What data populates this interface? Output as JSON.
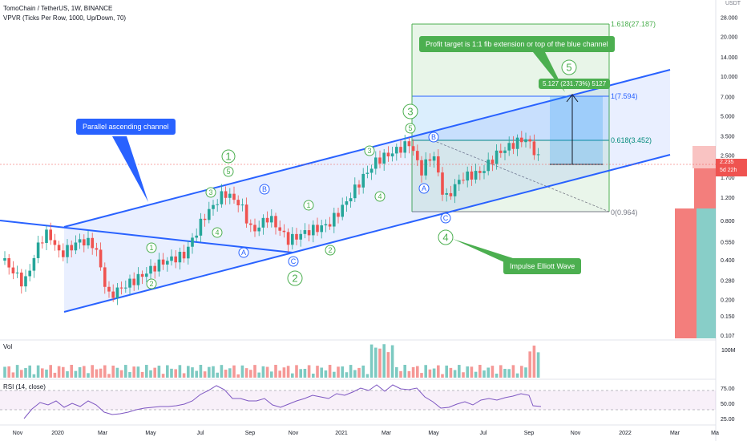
{
  "header": {
    "title": "TomoChain / TetherUS, 1W, BINANCE",
    "indicator": "VPVR (Ticks Per Row, 1000, Up/Down, 70)"
  },
  "chart_data": {
    "type": "candlestick",
    "price_axis": {
      "unit": "USDT",
      "scale": "log",
      "range": [
        0.107,
        33.0
      ],
      "ticks": [
        "28.000",
        "20.000",
        "14.000",
        "10.000",
        "7.000",
        "5.000",
        "3.500",
        "2.500",
        "1.700",
        "1.200",
        "0.800",
        "0.550",
        "0.400",
        "0.280",
        "0.200",
        "0.150",
        "0.107"
      ],
      "current_price": "2.235",
      "countdown": "5d 22h"
    },
    "time_axis": {
      "labels": [
        "Nov",
        "2020",
        "Mar",
        "May",
        "Jul",
        "Sep",
        "Nov",
        "2021",
        "Mar",
        "May",
        "Jul",
        "Sep",
        "Nov",
        "2022",
        "Mar",
        "Ma"
      ]
    },
    "annotations": {
      "channel_label": "Parallel ascending channel",
      "profit_target": "Profit target is 1:1 fib extension or top of the blue channel",
      "impulse_label": "Impulse Elliott Wave",
      "target_box": "5.127 (231.73%) 5127"
    },
    "fib_levels": [
      {
        "label": "1.618(27.187)",
        "value": 27.187
      },
      {
        "label": "1(7.594)",
        "value": 7.594
      },
      {
        "label": "0.618(3.452)",
        "value": 3.452
      },
      {
        "label": "0(0.964)",
        "value": 0.964
      }
    ],
    "waves": {
      "major": [
        "1",
        "2",
        "3",
        "4",
        "5"
      ],
      "minor": [
        "1",
        "2",
        "3",
        "4",
        "5"
      ],
      "corrective": [
        "A",
        "B",
        "C"
      ]
    },
    "volume_panel": {
      "label": "Vol",
      "tick": "100M"
    },
    "rsi_panel": {
      "label": "RSI (14, close)",
      "ticks": [
        "75.00",
        "50.00",
        "25.00"
      ]
    }
  }
}
